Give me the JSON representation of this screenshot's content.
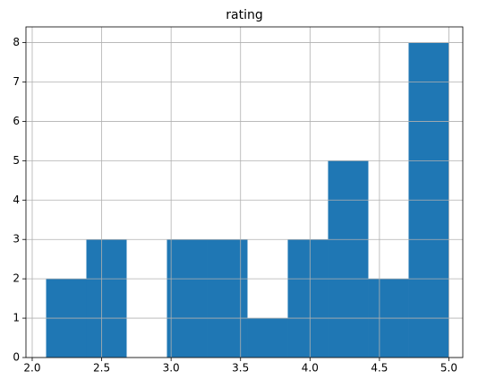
{
  "chart_data": {
    "type": "histogram",
    "title": "rating",
    "bins": [
      2.1,
      2.39,
      2.68,
      2.97,
      3.26,
      3.55,
      3.84,
      4.13,
      4.42,
      4.71,
      5.0
    ],
    "values": [
      2,
      3,
      0,
      3,
      3,
      1,
      3,
      5,
      2,
      8
    ],
    "color": "#1f77b4",
    "xlim": [
      1.955,
      5.1
    ],
    "ylim": [
      0,
      8.4
    ],
    "xticks": [
      {
        "value": 2.0,
        "label": "2.0"
      },
      {
        "value": 2.5,
        "label": "2.5"
      },
      {
        "value": 3.0,
        "label": "3.0"
      },
      {
        "value": 3.5,
        "label": "3.5"
      },
      {
        "value": 4.0,
        "label": "4.0"
      },
      {
        "value": 4.5,
        "label": "4.5"
      },
      {
        "value": 5.0,
        "label": "5.0"
      }
    ],
    "yticks": [
      0,
      1,
      2,
      3,
      4,
      5,
      6,
      7,
      8
    ],
    "grid": true
  }
}
